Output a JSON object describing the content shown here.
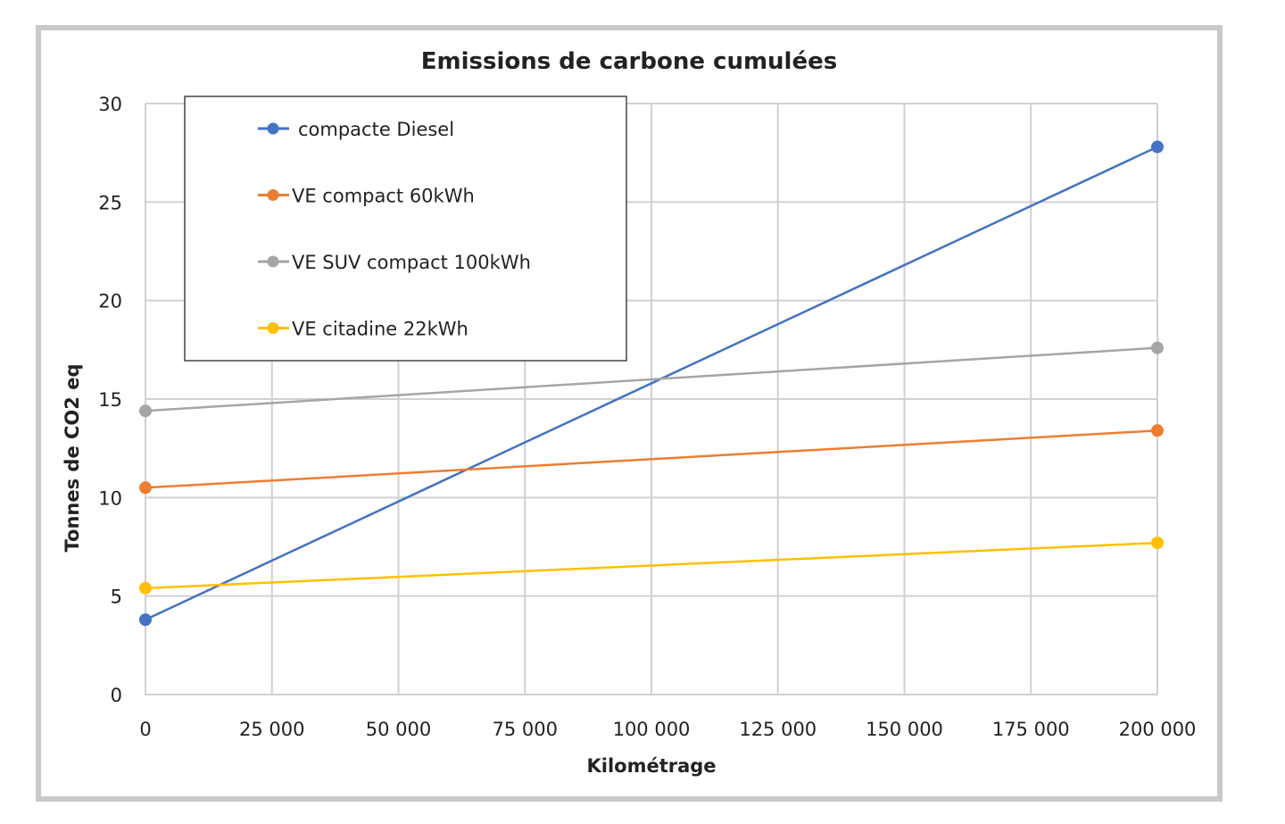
{
  "chart_data": {
    "type": "line",
    "title": "Emissions de carbone cumulées",
    "xlabel": "Kilométrage",
    "ylabel": "Tonnes de CO2 eq",
    "xlim": [
      0,
      200000
    ],
    "ylim": [
      0,
      30
    ],
    "x_ticks": [
      0,
      25000,
      50000,
      75000,
      100000,
      125000,
      150000,
      175000,
      200000
    ],
    "x_tick_labels": [
      "0",
      "25 000",
      "50 000",
      "75 000",
      "100 000",
      "125 000",
      "150 000",
      "175 000",
      "200 000"
    ],
    "y_ticks": [
      0,
      5,
      10,
      15,
      20,
      25,
      30
    ],
    "y_tick_labels": [
      "0",
      "5",
      "10",
      "15",
      "20",
      "25",
      "30"
    ],
    "grid": true,
    "legend_position": "top-left",
    "x": [
      0,
      200000
    ],
    "series": [
      {
        "name": "compacte Diesel",
        "values": [
          3.8,
          27.8
        ],
        "color": "#4472C4"
      },
      {
        "name": "VE compact  60kWh",
        "values": [
          10.5,
          13.4
        ],
        "color": "#ED7D31"
      },
      {
        "name": "VE SUV compact 100kWh",
        "values": [
          14.4,
          17.6
        ],
        "color": "#A5A5A5"
      },
      {
        "name": "VE citadine 22kWh",
        "values": [
          5.4,
          7.7
        ],
        "color": "#FFC000"
      }
    ]
  }
}
